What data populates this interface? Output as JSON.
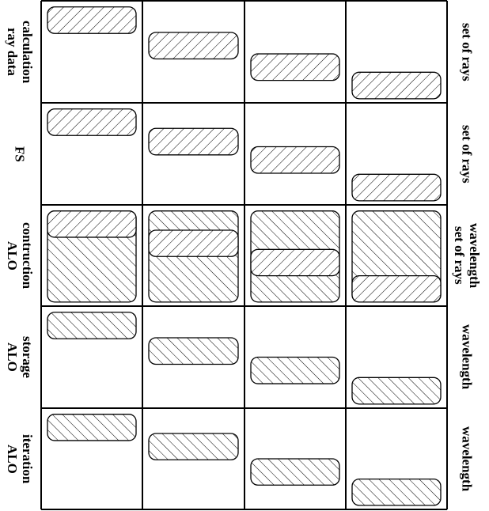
{
  "colors": {
    "line": "#000000",
    "background": "#ffffff"
  },
  "rows": [
    {
      "left_label": "calculation\nray data",
      "right_label": "set of rays",
      "cells": [
        [
          {
            "pattern": "backslash",
            "start": 0.06,
            "end": 0.32
          }
        ],
        [
          {
            "pattern": "backslash",
            "start": 0.31,
            "end": 0.57
          }
        ],
        [
          {
            "pattern": "backslash",
            "start": 0.52,
            "end": 0.78
          }
        ],
        [
          {
            "pattern": "backslash",
            "start": 0.7,
            "end": 0.96
          }
        ]
      ]
    },
    {
      "left_label": "FS",
      "right_label": "set of rays",
      "cells": [
        [
          {
            "pattern": "backslash",
            "start": 0.06,
            "end": 0.32
          }
        ],
        [
          {
            "pattern": "backslash",
            "start": 0.25,
            "end": 0.51
          }
        ],
        [
          {
            "pattern": "backslash",
            "start": 0.43,
            "end": 0.69
          }
        ],
        [
          {
            "pattern": "backslash",
            "start": 0.7,
            "end": 0.96
          }
        ]
      ]
    },
    {
      "left_label": "contruction\nALO",
      "right_label": "wavelength\nset of rays",
      "cells": [
        [
          {
            "pattern": "slash",
            "start": 0.06,
            "end": 0.96
          },
          {
            "pattern": "backslash",
            "start": 0.06,
            "end": 0.32
          }
        ],
        [
          {
            "pattern": "slash",
            "start": 0.06,
            "end": 0.96
          },
          {
            "pattern": "backslash",
            "start": 0.25,
            "end": 0.51
          }
        ],
        [
          {
            "pattern": "slash",
            "start": 0.06,
            "end": 0.96
          },
          {
            "pattern": "backslash",
            "start": 0.44,
            "end": 0.7
          }
        ],
        [
          {
            "pattern": "slash",
            "start": 0.06,
            "end": 0.96
          },
          {
            "pattern": "backslash",
            "start": 0.7,
            "end": 0.96
          }
        ]
      ]
    },
    {
      "left_label": "storage\nALO",
      "right_label": "wavelength",
      "cells": [
        [
          {
            "pattern": "slash",
            "start": 0.06,
            "end": 0.32
          }
        ],
        [
          {
            "pattern": "slash",
            "start": 0.31,
            "end": 0.57
          }
        ],
        [
          {
            "pattern": "slash",
            "start": 0.5,
            "end": 0.76
          }
        ],
        [
          {
            "pattern": "slash",
            "start": 0.7,
            "end": 0.96
          }
        ]
      ]
    },
    {
      "left_label": "iteration\nALO",
      "right_label": "wavelength",
      "cells": [
        [
          {
            "pattern": "slash",
            "start": 0.06,
            "end": 0.32
          }
        ],
        [
          {
            "pattern": "slash",
            "start": 0.25,
            "end": 0.51
          }
        ],
        [
          {
            "pattern": "slash",
            "start": 0.5,
            "end": 0.76
          }
        ],
        [
          {
            "pattern": "slash",
            "start": 0.7,
            "end": 0.96
          }
        ]
      ]
    }
  ]
}
